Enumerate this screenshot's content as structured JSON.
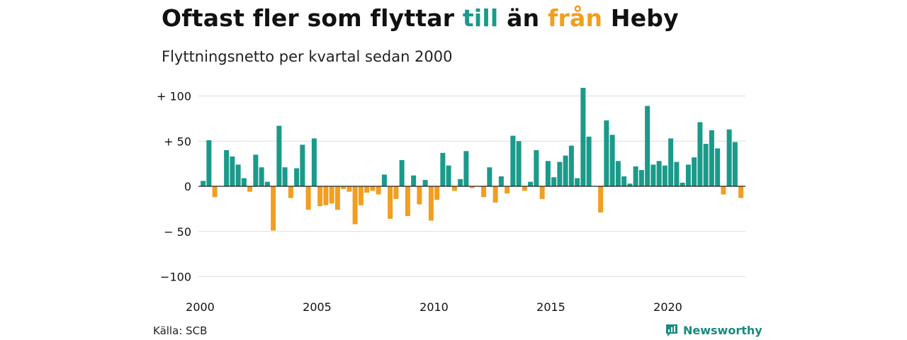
{
  "title": {
    "prefix": "Oftast fler som flyttar ",
    "positive_word": "till",
    "middle": " än ",
    "negative_word": "från",
    "suffix": " Heby"
  },
  "subtitle": "Flyttningsnetto per kvartal sedan 2000",
  "source": "Källa: SCB",
  "brand": {
    "name": "Newsworthy",
    "icon": "newsworthy-logo-icon"
  },
  "colors": {
    "positive": "#1a9a8a",
    "negative": "#f29e1f",
    "grid": "#dddddd",
    "zero": "#222222"
  },
  "chart_data": {
    "type": "bar",
    "x_start_year": 2000,
    "periods_per_year": 4,
    "xticks": [
      "2000",
      "2005",
      "2010",
      "2015",
      "2020"
    ],
    "yticks": [
      {
        "value": 100,
        "label": "+ 100"
      },
      {
        "value": 50,
        "label": "+  50"
      },
      {
        "value": 0,
        "label": "0"
      },
      {
        "value": -50,
        "label": "− 50"
      },
      {
        "value": -100,
        "label": "−100"
      }
    ],
    "ylim": [
      -100,
      110
    ],
    "values": [
      6,
      51,
      -12,
      0,
      40,
      33,
      24,
      9,
      -6,
      35,
      21,
      5,
      -49,
      67,
      21,
      -13,
      20,
      46,
      -26,
      53,
      -22,
      -21,
      -19,
      -26,
      -3,
      -6,
      -42,
      -21,
      -7,
      -5,
      -9,
      13,
      -36,
      -14,
      29,
      -33,
      12,
      -20,
      7,
      -38,
      -15,
      37,
      23,
      -5,
      8,
      39,
      -2,
      0,
      -12,
      21,
      -18,
      11,
      -8,
      56,
      50,
      -5,
      5,
      40,
      -14,
      28,
      10,
      27,
      34,
      45,
      9,
      109,
      55,
      0,
      -29,
      73,
      57,
      28,
      11,
      3,
      22,
      18,
      89,
      24,
      28,
      23,
      53,
      27,
      4,
      24,
      32,
      71,
      47,
      62,
      42,
      -9,
      63,
      49,
      -13
    ]
  }
}
